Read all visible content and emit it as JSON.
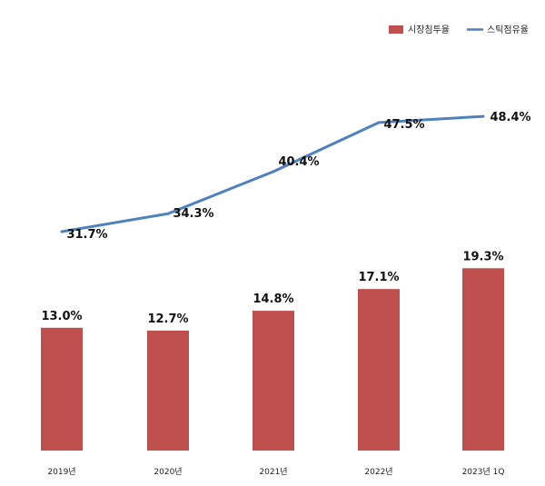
{
  "chart_data": {
    "type": "bar",
    "categories": [
      "2019년",
      "2020년",
      "2021년",
      "2022년",
      "2023년 1Q"
    ],
    "series": [
      {
        "name": "시장침투율",
        "type": "bar",
        "values": [
          13.0,
          12.7,
          14.8,
          17.1,
          19.3
        ],
        "labels": [
          "13.0%",
          "12.7%",
          "14.8%",
          "17.1%",
          "19.3%"
        ],
        "color": "#c0504d"
      },
      {
        "name": "스틱점유율",
        "type": "line",
        "values": [
          31.7,
          34.3,
          40.4,
          47.5,
          48.4
        ],
        "labels": [
          "31.7%",
          "34.3%",
          "40.4%",
          "47.5%",
          "48.4%"
        ],
        "color": "#4f81bd"
      }
    ],
    "legend_position": "top-right",
    "grid": false
  }
}
